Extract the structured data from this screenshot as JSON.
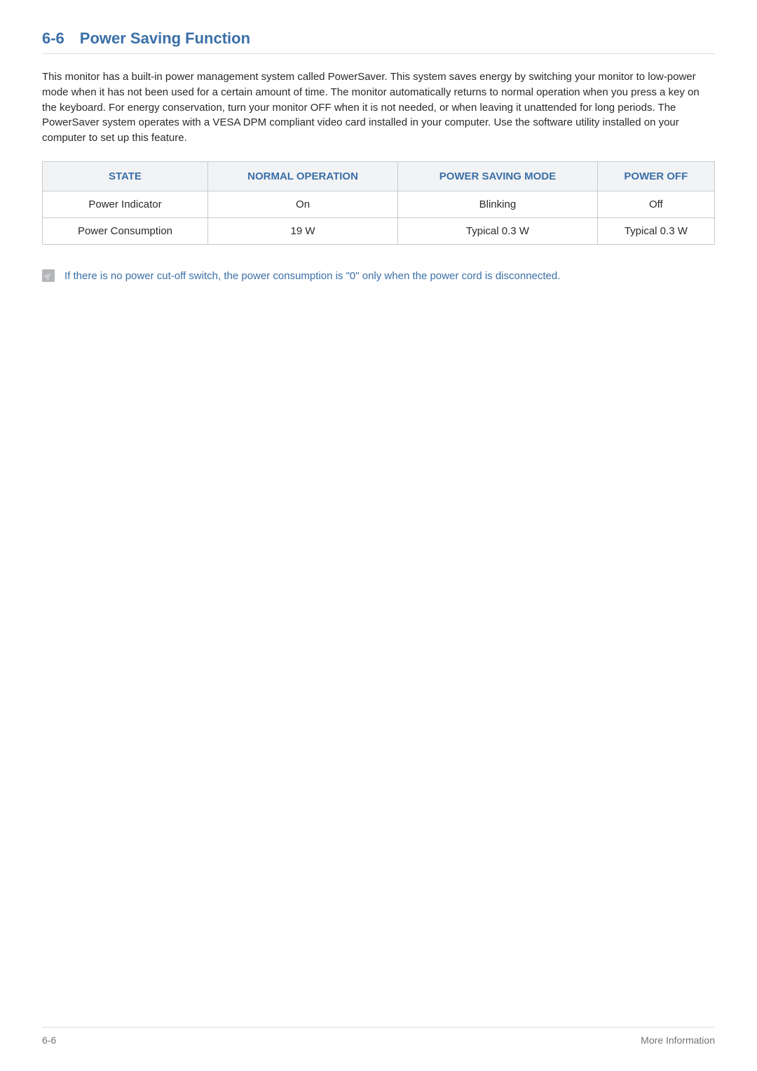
{
  "heading": {
    "number": "6-6",
    "title": "Power Saving Function"
  },
  "intro": "This monitor has a built-in power management system called PowerSaver. This system saves energy by switching your monitor to low-power mode when it has not been used for a certain amount of time. The monitor automatically returns to normal operation when you press a key on the keyboard. For energy conservation, turn your monitor OFF when it is not needed, or when leaving it unattended for long periods. The PowerSaver system operates with a VESA DPM compliant video card installed in your computer. Use the software utility installed on your computer to set up this feature.",
  "table": {
    "headers": [
      "STATE",
      "NORMAL OPERATION",
      "POWER SAVING MODE",
      "POWER OFF"
    ],
    "rows": [
      [
        "Power Indicator",
        "On",
        "Blinking",
        "Off"
      ],
      [
        "Power Consumption",
        "19 W",
        "Typical 0.3 W",
        "Typical 0.3 W"
      ]
    ],
    "header_bg": "#f2f3f5",
    "header_color": "#3a6fa7",
    "border_color": "#c9cacc",
    "cell_color": "#2a2a2a"
  },
  "note": "If there is no power cut-off switch, the power consumption is \"0\" only when the power cord is disconnected.",
  "footer": {
    "left": "6-6",
    "right": "More Information"
  },
  "colors": {
    "heading": "#3a6fa7",
    "body_text": "#2a2a2a",
    "note_text": "#3a6fa7",
    "divider": "#dcdde1",
    "footer_text": "#6f7378",
    "note_icon_bg": "#b3b5b8"
  },
  "typography": {
    "base_font_size": 15,
    "heading_font_size": 22
  }
}
